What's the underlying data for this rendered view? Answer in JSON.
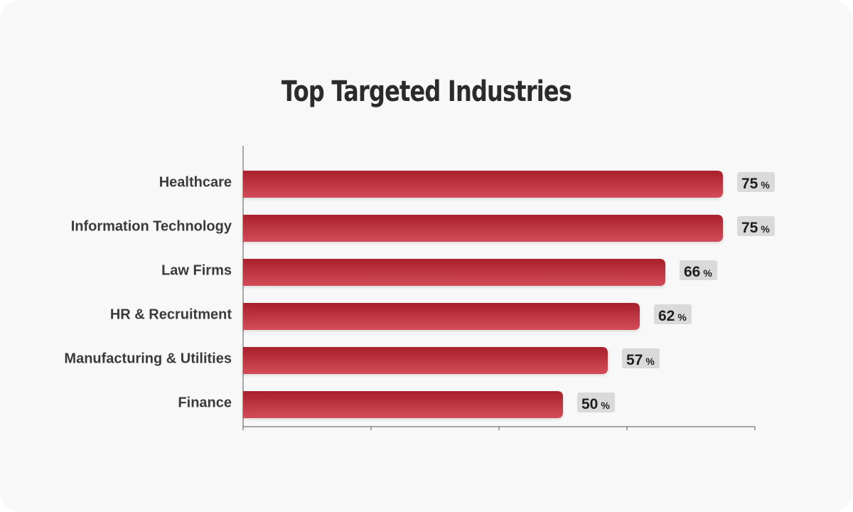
{
  "chart_data": {
    "type": "bar",
    "orientation": "horizontal",
    "title": "Top Targeted Industries",
    "categories": [
      "Healthcare",
      "Information Technology",
      "Law Firms",
      "HR & Recruitment",
      "Manufacturing & Utilities",
      "Finance"
    ],
    "values": [
      75,
      75,
      66,
      62,
      57,
      50
    ],
    "value_unit": "%",
    "xlim": [
      0,
      80
    ],
    "xlabel": "",
    "ylabel": "",
    "grid": false,
    "colors": {
      "bar_top": "#a8202c",
      "bar_bottom": "#d24d59",
      "label_bg": "#dadada"
    }
  }
}
